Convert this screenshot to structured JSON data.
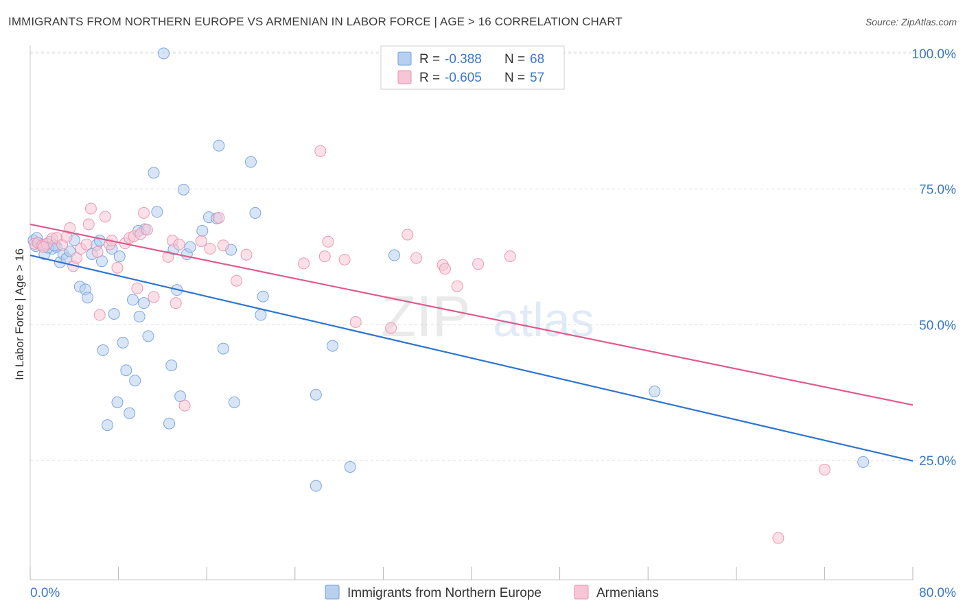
{
  "header": {
    "title": "IMMIGRANTS FROM NORTHERN EUROPE VS ARMENIAN IN LABOR FORCE | AGE > 16 CORRELATION CHART",
    "source": "Source: ZipAtlas.com"
  },
  "watermark": {
    "zip": "ZIP",
    "atlas": "atlas"
  },
  "colors": {
    "blue_fill": "#b8d0f0",
    "blue_stroke": "#6f9fdc",
    "blue_line": "#2d74d2",
    "pink_fill": "#f7c6d6",
    "pink_stroke": "#e890ad",
    "pink_line": "#e05a8c",
    "tick_label": "#3b78c8",
    "grid": "#dcdcdc"
  },
  "stats_box": {
    "r_label": "R =",
    "n_label": "N =",
    "rows": [
      {
        "r": "-0.388",
        "n": "68"
      },
      {
        "r": "-0.605",
        "n": "57"
      }
    ]
  },
  "chart_data": {
    "type": "scatter",
    "title": "IMMIGRANTS FROM NORTHERN EUROPE VS ARMENIAN IN LABOR FORCE | AGE > 16 CORRELATION CHART",
    "xlabel": "",
    "ylabel": "In Labor Force | Age > 16",
    "xlim": [
      0,
      80
    ],
    "ylim": [
      3,
      102
    ],
    "x_tick_labels": [
      "0.0%",
      "80.0%"
    ],
    "y_ticks": [
      25,
      50,
      75,
      100
    ],
    "y_tick_labels": [
      "25.0%",
      "50.0%",
      "75.0%",
      "100.0%"
    ],
    "grid": true,
    "legend_position": "bottom-center",
    "series": [
      {
        "name": "Immigrants from Northern Europe",
        "color": "#6f9fdc",
        "r": -0.388,
        "n": 68,
        "trend": {
          "x": [
            0,
            80
          ],
          "y": [
            62.8,
            24.9
          ]
        },
        "points": [
          [
            0.3,
            65.5
          ],
          [
            0.5,
            64.5
          ],
          [
            0.8,
            65.0
          ],
          [
            1.0,
            64.8
          ],
          [
            1.3,
            63.0
          ],
          [
            1.8,
            65.3
          ],
          [
            2.0,
            64.0
          ],
          [
            2.4,
            64.3
          ],
          [
            2.7,
            61.5
          ],
          [
            3.0,
            63.0
          ],
          [
            3.3,
            62.2
          ],
          [
            3.6,
            63.5
          ],
          [
            4.0,
            65.6
          ],
          [
            4.5,
            57.0
          ],
          [
            5.0,
            56.5
          ],
          [
            5.2,
            55.0
          ],
          [
            5.6,
            63.0
          ],
          [
            6.0,
            64.7
          ],
          [
            6.3,
            65.5
          ],
          [
            6.5,
            61.7
          ],
          [
            6.6,
            45.3
          ],
          [
            7.0,
            31.5
          ],
          [
            7.4,
            64.0
          ],
          [
            7.6,
            52.0
          ],
          [
            7.9,
            35.7
          ],
          [
            8.1,
            62.6
          ],
          [
            8.4,
            46.7
          ],
          [
            8.7,
            41.6
          ],
          [
            9.0,
            33.7
          ],
          [
            9.3,
            54.6
          ],
          [
            9.5,
            39.7
          ],
          [
            9.9,
            51.5
          ],
          [
            10.3,
            54.0
          ],
          [
            10.4,
            67.6
          ],
          [
            10.7,
            47.9
          ],
          [
            11.2,
            78.0
          ],
          [
            11.5,
            70.8
          ],
          [
            12.1,
            100.0
          ],
          [
            12.6,
            31.8
          ],
          [
            12.8,
            42.5
          ],
          [
            13.0,
            63.9
          ],
          [
            13.3,
            56.4
          ],
          [
            13.6,
            36.8
          ],
          [
            13.9,
            74.9
          ],
          [
            14.2,
            63.0
          ],
          [
            14.5,
            64.3
          ],
          [
            15.6,
            67.3
          ],
          [
            16.2,
            69.8
          ],
          [
            16.9,
            69.6
          ],
          [
            17.1,
            83.0
          ],
          [
            17.5,
            45.6
          ],
          [
            18.2,
            63.8
          ],
          [
            18.5,
            35.7
          ],
          [
            20.0,
            80.0
          ],
          [
            20.4,
            70.6
          ],
          [
            20.9,
            51.8
          ],
          [
            21.1,
            55.2
          ],
          [
            25.9,
            37.1
          ],
          [
            27.4,
            46.1
          ],
          [
            29.0,
            23.8
          ],
          [
            25.9,
            20.3
          ],
          [
            33.0,
            62.8
          ],
          [
            56.6,
            37.7
          ],
          [
            75.5,
            24.7
          ],
          [
            0.6,
            66.0
          ],
          [
            1.6,
            64.2
          ],
          [
            2.2,
            64.6
          ],
          [
            9.8,
            67.3
          ]
        ]
      },
      {
        "name": "Armenians",
        "color": "#e890ad",
        "r": -0.605,
        "n": 57,
        "trend": {
          "x": [
            0,
            80
          ],
          "y": [
            68.5,
            35.2
          ]
        },
        "points": [
          [
            0.4,
            64.9
          ],
          [
            0.7,
            65.1
          ],
          [
            1.1,
            64.6
          ],
          [
            1.5,
            64.9
          ],
          [
            2.0,
            65.9
          ],
          [
            2.4,
            66.0
          ],
          [
            2.9,
            64.7
          ],
          [
            3.3,
            66.2
          ],
          [
            3.6,
            67.8
          ],
          [
            3.9,
            60.8
          ],
          [
            4.2,
            62.3
          ],
          [
            4.6,
            64.0
          ],
          [
            5.1,
            64.8
          ],
          [
            5.3,
            68.5
          ],
          [
            5.5,
            71.4
          ],
          [
            6.1,
            63.4
          ],
          [
            6.3,
            51.8
          ],
          [
            6.8,
            69.9
          ],
          [
            7.2,
            64.8
          ],
          [
            7.4,
            65.5
          ],
          [
            7.9,
            60.5
          ],
          [
            8.6,
            65.0
          ],
          [
            9.0,
            66.0
          ],
          [
            9.4,
            66.3
          ],
          [
            9.7,
            56.7
          ],
          [
            10.0,
            66.7
          ],
          [
            10.3,
            70.6
          ],
          [
            10.6,
            67.5
          ],
          [
            11.2,
            55.1
          ],
          [
            12.5,
            62.5
          ],
          [
            12.9,
            65.5
          ],
          [
            13.2,
            54.0
          ],
          [
            13.5,
            64.8
          ],
          [
            14.0,
            35.1
          ],
          [
            15.5,
            65.4
          ],
          [
            16.3,
            64.0
          ],
          [
            17.1,
            69.7
          ],
          [
            17.5,
            64.6
          ],
          [
            18.7,
            58.1
          ],
          [
            19.6,
            62.9
          ],
          [
            26.3,
            82.0
          ],
          [
            24.8,
            61.3
          ],
          [
            26.7,
            62.6
          ],
          [
            27.0,
            65.3
          ],
          [
            28.5,
            62.0
          ],
          [
            29.5,
            50.5
          ],
          [
            32.7,
            49.4
          ],
          [
            34.2,
            66.6
          ],
          [
            35.0,
            62.3
          ],
          [
            37.4,
            61.0
          ],
          [
            37.6,
            60.3
          ],
          [
            38.7,
            57.1
          ],
          [
            40.6,
            61.2
          ],
          [
            43.5,
            62.6
          ],
          [
            72.0,
            23.3
          ],
          [
            67.8,
            10.7
          ],
          [
            1.2,
            64.3
          ]
        ]
      }
    ]
  }
}
